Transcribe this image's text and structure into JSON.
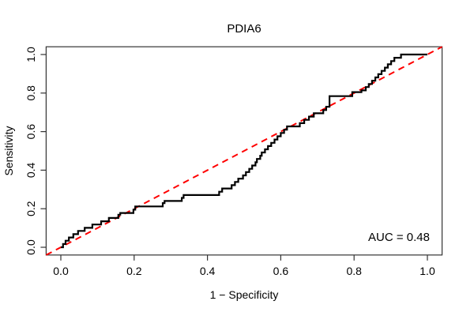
{
  "title": "PDIA6",
  "auc_label": "AUC = 0.48",
  "axes": {
    "xlabel": "1 − Specificity",
    "ylabel": "Sensitivity"
  },
  "colors": {
    "curve": "#000000",
    "diagonal": "#ff0000",
    "axis": "#333333",
    "background": "#ffffff"
  },
  "chart_data": {
    "type": "line",
    "subtype": "roc-curve",
    "title": "PDIA6",
    "xlabel": "1 − Specificity",
    "ylabel": "Sensitivity",
    "xlim": [
      0,
      1
    ],
    "ylim": [
      0,
      1
    ],
    "grid": false,
    "legend": "none",
    "auc": 0.48,
    "auc_text": "AUC = 0.48",
    "x_tick_values": [
      0.0,
      0.2,
      0.4,
      0.6,
      0.8,
      1.0
    ],
    "x_tick_labels": [
      "0.0",
      "0.2",
      "0.4",
      "0.6",
      "0.8",
      "1.0"
    ],
    "y_tick_values": [
      0.0,
      0.2,
      0.4,
      0.6,
      0.8,
      1.0
    ],
    "y_tick_labels": [
      "0.0",
      "0.2",
      "0.4",
      "0.6",
      "0.8",
      "1.0"
    ],
    "diagonal_reference": {
      "from": [
        0,
        0
      ],
      "to": [
        1,
        1
      ],
      "style": "dashed",
      "color": "#ff0000"
    },
    "roc_points": [
      [
        0.0,
        0.0
      ],
      [
        0.006,
        0.0
      ],
      [
        0.006,
        0.017
      ],
      [
        0.013,
        0.017
      ],
      [
        0.013,
        0.034
      ],
      [
        0.022,
        0.034
      ],
      [
        0.022,
        0.051
      ],
      [
        0.034,
        0.051
      ],
      [
        0.034,
        0.068
      ],
      [
        0.047,
        0.068
      ],
      [
        0.047,
        0.085
      ],
      [
        0.065,
        0.085
      ],
      [
        0.065,
        0.101
      ],
      [
        0.086,
        0.101
      ],
      [
        0.086,
        0.118
      ],
      [
        0.11,
        0.118
      ],
      [
        0.11,
        0.135
      ],
      [
        0.131,
        0.135
      ],
      [
        0.131,
        0.152
      ],
      [
        0.157,
        0.152
      ],
      [
        0.157,
        0.169
      ],
      [
        0.162,
        0.169
      ],
      [
        0.162,
        0.178
      ],
      [
        0.198,
        0.178
      ],
      [
        0.198,
        0.195
      ],
      [
        0.203,
        0.195
      ],
      [
        0.203,
        0.212
      ],
      [
        0.278,
        0.212
      ],
      [
        0.278,
        0.229
      ],
      [
        0.283,
        0.229
      ],
      [
        0.283,
        0.24
      ],
      [
        0.33,
        0.24
      ],
      [
        0.33,
        0.256
      ],
      [
        0.335,
        0.256
      ],
      [
        0.335,
        0.271
      ],
      [
        0.432,
        0.271
      ],
      [
        0.432,
        0.288
      ],
      [
        0.44,
        0.288
      ],
      [
        0.44,
        0.305
      ],
      [
        0.466,
        0.305
      ],
      [
        0.466,
        0.322
      ],
      [
        0.475,
        0.322
      ],
      [
        0.475,
        0.339
      ],
      [
        0.484,
        0.339
      ],
      [
        0.484,
        0.356
      ],
      [
        0.497,
        0.356
      ],
      [
        0.497,
        0.373
      ],
      [
        0.505,
        0.373
      ],
      [
        0.505,
        0.39
      ],
      [
        0.514,
        0.39
      ],
      [
        0.514,
        0.407
      ],
      [
        0.522,
        0.407
      ],
      [
        0.522,
        0.424
      ],
      [
        0.531,
        0.424
      ],
      [
        0.531,
        0.441
      ],
      [
        0.535,
        0.441
      ],
      [
        0.535,
        0.458
      ],
      [
        0.544,
        0.458
      ],
      [
        0.544,
        0.475
      ],
      [
        0.548,
        0.475
      ],
      [
        0.548,
        0.492
      ],
      [
        0.557,
        0.492
      ],
      [
        0.557,
        0.508
      ],
      [
        0.565,
        0.508
      ],
      [
        0.565,
        0.525
      ],
      [
        0.574,
        0.525
      ],
      [
        0.574,
        0.542
      ],
      [
        0.583,
        0.542
      ],
      [
        0.583,
        0.559
      ],
      [
        0.591,
        0.559
      ],
      [
        0.591,
        0.576
      ],
      [
        0.6,
        0.576
      ],
      [
        0.6,
        0.593
      ],
      [
        0.609,
        0.593
      ],
      [
        0.609,
        0.61
      ],
      [
        0.617,
        0.61
      ],
      [
        0.617,
        0.627
      ],
      [
        0.652,
        0.627
      ],
      [
        0.652,
        0.644
      ],
      [
        0.664,
        0.644
      ],
      [
        0.664,
        0.661
      ],
      [
        0.677,
        0.661
      ],
      [
        0.677,
        0.678
      ],
      [
        0.69,
        0.678
      ],
      [
        0.69,
        0.695
      ],
      [
        0.716,
        0.695
      ],
      [
        0.716,
        0.712
      ],
      [
        0.724,
        0.712
      ],
      [
        0.724,
        0.729
      ],
      [
        0.733,
        0.729
      ],
      [
        0.733,
        0.784
      ],
      [
        0.795,
        0.784
      ],
      [
        0.795,
        0.805
      ],
      [
        0.82,
        0.805
      ],
      [
        0.82,
        0.814
      ],
      [
        0.832,
        0.814
      ],
      [
        0.832,
        0.831
      ],
      [
        0.84,
        0.831
      ],
      [
        0.84,
        0.847
      ],
      [
        0.849,
        0.847
      ],
      [
        0.849,
        0.864
      ],
      [
        0.858,
        0.864
      ],
      [
        0.858,
        0.881
      ],
      [
        0.866,
        0.881
      ],
      [
        0.866,
        0.898
      ],
      [
        0.875,
        0.898
      ],
      [
        0.875,
        0.915
      ],
      [
        0.884,
        0.915
      ],
      [
        0.884,
        0.932
      ],
      [
        0.892,
        0.932
      ],
      [
        0.892,
        0.949
      ],
      [
        0.901,
        0.949
      ],
      [
        0.901,
        0.966
      ],
      [
        0.91,
        0.966
      ],
      [
        0.91,
        0.983
      ],
      [
        0.928,
        0.983
      ],
      [
        0.928,
        1.0
      ],
      [
        1.0,
        1.0
      ]
    ]
  }
}
